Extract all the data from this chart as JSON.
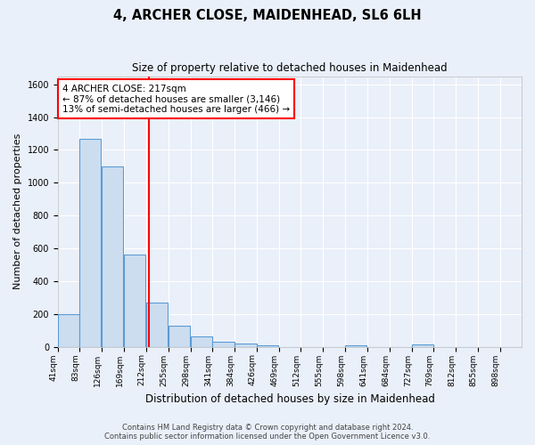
{
  "title": "4, ARCHER CLOSE, MAIDENHEAD, SL6 6LH",
  "subtitle": "Size of property relative to detached houses in Maidenhead",
  "xlabel": "Distribution of detached houses by size in Maidenhead",
  "ylabel": "Number of detached properties",
  "bin_starts": [
    41,
    83,
    126,
    169,
    212,
    255,
    298,
    341,
    384,
    426,
    469,
    512,
    555,
    598,
    641,
    684,
    727,
    769,
    812,
    855,
    898
  ],
  "counts": [
    200,
    1270,
    1100,
    560,
    270,
    130,
    65,
    30,
    20,
    10,
    0,
    0,
    0,
    10,
    0,
    0,
    15,
    0,
    0,
    0,
    0
  ],
  "bar_color": "#ccddf0",
  "bar_edge_color": "#5b9bd5",
  "red_line_x": 217,
  "annotation_line1": "4 ARCHER CLOSE: 217sqm",
  "annotation_line2": "← 87% of detached houses are smaller (3,146)",
  "annotation_line3": "13% of semi-detached houses are larger (466) →",
  "annotation_box_color": "white",
  "annotation_box_edge_color": "red",
  "ylim": [
    0,
    1650
  ],
  "yticks": [
    0,
    200,
    400,
    600,
    800,
    1000,
    1200,
    1400,
    1600
  ],
  "bg_color": "#eaf0f9",
  "grid_color": "white",
  "footer_line1": "Contains HM Land Registry data © Crown copyright and database right 2024.",
  "footer_line2": "Contains public sector information licensed under the Open Government Licence v3.0."
}
